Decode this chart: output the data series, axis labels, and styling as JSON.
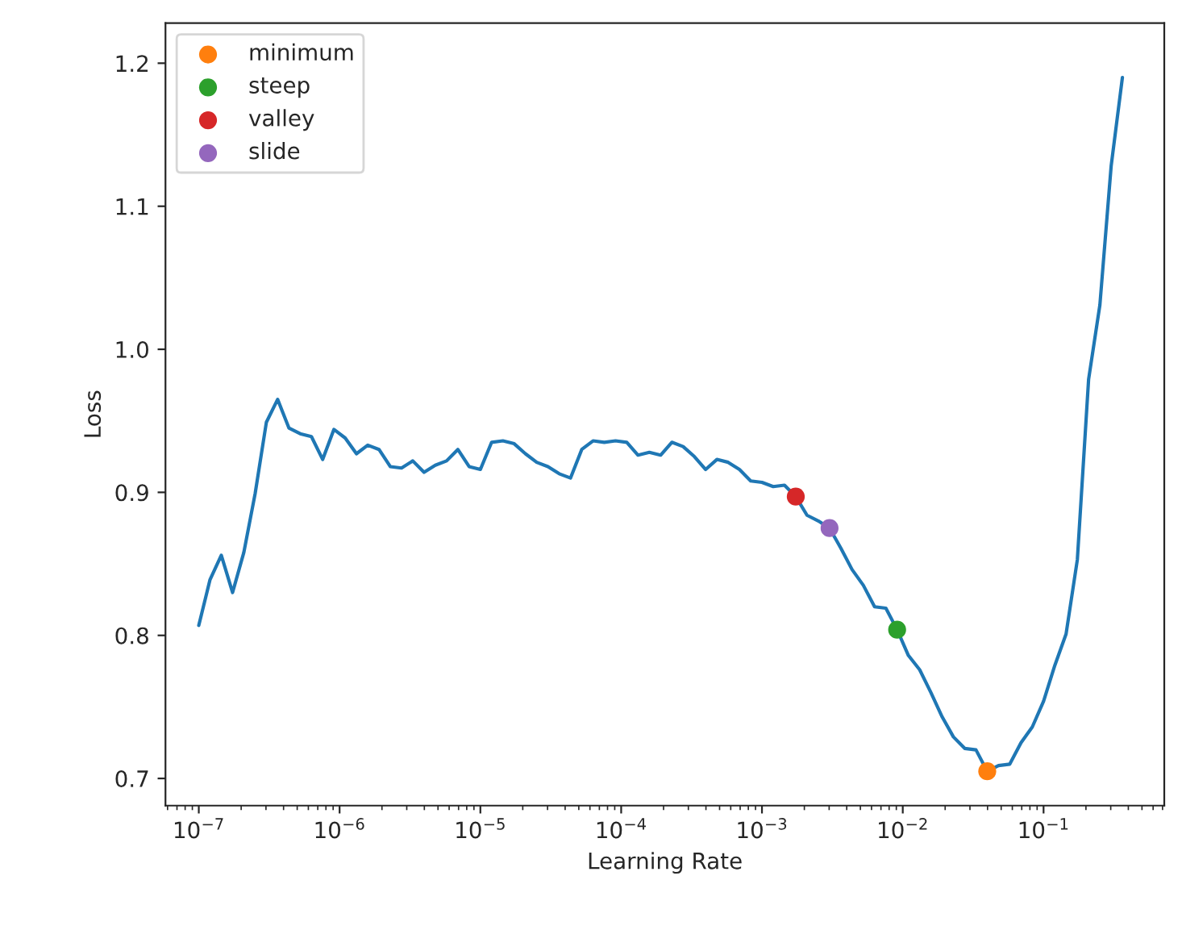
{
  "chart_data": {
    "type": "line",
    "xlabel": "Learning Rate",
    "ylabel": "Loss",
    "log": "x",
    "grid": false,
    "legend": "top left",
    "xlim": [
      5.8e-08,
      0.72
    ],
    "ylim": [
      0.681,
      1.228
    ],
    "xticks": [
      {
        "value": 1e-07,
        "label": "10$^{−7}$"
      },
      {
        "value": 1e-06,
        "label": "10$^{−6}$"
      },
      {
        "value": 1e-05,
        "label": "10$^{−5}$"
      },
      {
        "value": 0.0001,
        "label": "10$^{−4}$"
      },
      {
        "value": 0.001,
        "label": "10$^{−3}$"
      },
      {
        "value": 0.01,
        "label": "10$^{−2}$"
      },
      {
        "value": 0.1,
        "label": "10$^{−1}$"
      }
    ],
    "yticks": [
      0.7,
      0.8,
      0.9,
      {
        "value": 1.0,
        "label": "1.0"
      },
      1.1,
      1.2
    ],
    "series": [
      {
        "color": "#1f77b4",
        "marker": "none",
        "line_style": "solid",
        "x": [
          1e-07,
          1.202e-07,
          1.445e-07,
          1.738e-07,
          2.089e-07,
          2.512e-07,
          3.02e-07,
          3.631e-07,
          4.365e-07,
          5.248e-07,
          6.31e-07,
          7.586e-07,
          9.12e-07,
          1.096e-06,
          1.318e-06,
          1.585e-06,
          1.905e-06,
          2.291e-06,
          2.754e-06,
          3.311e-06,
          3.981e-06,
          4.786e-06,
          5.754e-06,
          6.918e-06,
          8.318e-06,
          1e-05,
          1.202e-05,
          1.445e-05,
          1.738e-05,
          2.089e-05,
          2.512e-05,
          3.02e-05,
          3.631e-05,
          4.365e-05,
          5.248e-05,
          6.31e-05,
          7.586e-05,
          9.12e-05,
          0.0001096,
          0.0001318,
          0.0001585,
          0.0001905,
          0.0002291,
          0.0002754,
          0.0003311,
          0.0003981,
          0.0004786,
          0.0005754,
          0.0006918,
          0.0008318,
          0.001,
          0.001202,
          0.001445,
          0.001738,
          0.002089,
          0.002512,
          0.00302,
          0.003631,
          0.004365,
          0.005248,
          0.00631,
          0.007586,
          0.00912,
          0.01096,
          0.01318,
          0.01585,
          0.01905,
          0.02291,
          0.02754,
          0.03311,
          0.03981,
          0.04786,
          0.05754,
          0.06918,
          0.08318,
          0.1,
          0.1202,
          0.1445,
          0.1738,
          0.2089,
          0.2512,
          0.302,
          0.3631
        ],
        "values": [
          0.807,
          0.839,
          0.856,
          0.83,
          0.858,
          0.899,
          0.949,
          0.965,
          0.945,
          0.941,
          0.939,
          0.923,
          0.944,
          0.938,
          0.927,
          0.933,
          0.93,
          0.918,
          0.917,
          0.922,
          0.914,
          0.919,
          0.922,
          0.93,
          0.918,
          0.916,
          0.935,
          0.936,
          0.934,
          0.927,
          0.921,
          0.918,
          0.913,
          0.91,
          0.93,
          0.936,
          0.935,
          0.936,
          0.935,
          0.926,
          0.928,
          0.926,
          0.935,
          0.932,
          0.925,
          0.916,
          0.923,
          0.921,
          0.916,
          0.908,
          0.907,
          0.904,
          0.905,
          0.897,
          0.884,
          0.88,
          0.875,
          0.861,
          0.846,
          0.835,
          0.82,
          0.819,
          0.804,
          0.786,
          0.776,
          0.76,
          0.743,
          0.729,
          0.721,
          0.72,
          0.705,
          0.709,
          0.71,
          0.725,
          0.736,
          0.754,
          0.779,
          0.801,
          0.853,
          0.979,
          1.031,
          1.128,
          1.19
        ]
      },
      {
        "type": "scatter",
        "name": "minimum",
        "color": "#ff7f0e",
        "marker": "circle",
        "x": [
          0.03981
        ],
        "values": [
          0.705
        ]
      },
      {
        "type": "scatter",
        "name": "steep",
        "color": "#2ca02c",
        "marker": "circle",
        "x": [
          0.00912
        ],
        "values": [
          0.804
        ]
      },
      {
        "type": "scatter",
        "name": "valley",
        "color": "#d62728",
        "marker": "circle",
        "x": [
          0.001738
        ],
        "values": [
          0.897
        ]
      },
      {
        "type": "scatter",
        "name": "slide",
        "color": "#9467bd",
        "marker": "circle",
        "x": [
          0.00302
        ],
        "values": [
          0.875
        ]
      }
    ]
  }
}
